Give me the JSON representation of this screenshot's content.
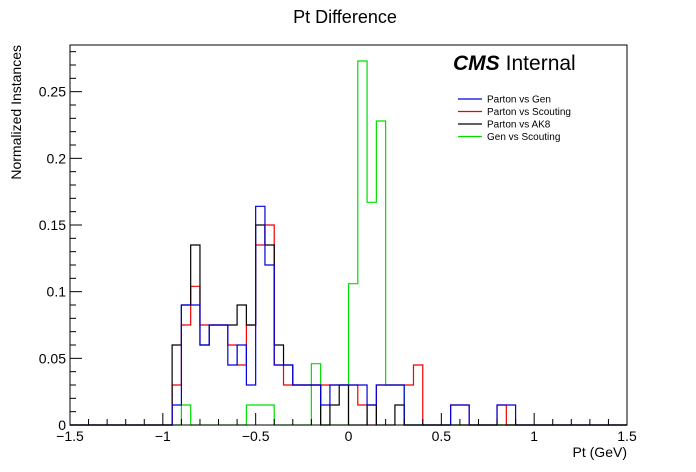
{
  "chart_data": {
    "type": "line",
    "style": "step-histogram",
    "title": "Pt Difference",
    "xlabel": "Pt (GeV)",
    "ylabel": "Normalized Instances",
    "xlim": [
      -1.5,
      1.5
    ],
    "ylim": [
      0,
      0.285
    ],
    "x_ticks": [
      -1.5,
      -1,
      -0.5,
      0,
      0.5,
      1,
      1.5
    ],
    "x_tick_labels": [
      "−1.5",
      "−1",
      "−0.5",
      "0",
      "0.5",
      "1",
      "1.5"
    ],
    "y_ticks": [
      0,
      0.05,
      0.1,
      0.15,
      0.2,
      0.25
    ],
    "y_tick_labels": [
      "0",
      "0.05",
      "0.1",
      "0.15",
      "0.2",
      "0.25"
    ],
    "annotation": {
      "bold": "CMS",
      "normal": "Internal"
    },
    "legend_position": "top-right",
    "bin_edges": [
      -1.5,
      -1.45,
      -1.4,
      -1.35,
      -1.3,
      -1.25,
      -1.2,
      -1.15,
      -1.1,
      -1.05,
      -1.0,
      -0.95,
      -0.9,
      -0.85,
      -0.8,
      -0.75,
      -0.7,
      -0.65,
      -0.6,
      -0.55,
      -0.5,
      -0.45,
      -0.4,
      -0.35,
      -0.3,
      -0.25,
      -0.2,
      -0.15,
      -0.1,
      -0.05,
      0.0,
      0.05,
      0.1,
      0.15,
      0.2,
      0.25,
      0.3,
      0.35,
      0.4,
      0.45,
      0.5,
      0.55,
      0.6,
      0.65,
      0.7,
      0.75,
      0.8,
      0.85,
      0.9,
      0.95,
      1.0,
      1.05,
      1.1,
      1.15,
      1.2,
      1.25,
      1.3,
      1.35,
      1.4,
      1.45,
      1.5
    ],
    "series": [
      {
        "name": "Gen vs Scouting",
        "color": "#00dd00",
        "values": [
          0,
          0,
          0,
          0,
          0,
          0,
          0,
          0,
          0,
          0,
          0,
          0,
          0.015,
          0,
          0,
          0,
          0,
          0,
          0,
          0.015,
          0.015,
          0.015,
          0,
          0,
          0,
          0,
          0.046,
          0,
          0,
          0,
          0.106,
          0.273,
          0.167,
          0.228,
          0.03,
          0.03,
          0,
          0,
          0,
          0,
          0,
          0,
          0,
          0,
          0,
          0,
          0,
          0,
          0,
          0,
          0,
          0,
          0,
          0,
          0,
          0,
          0,
          0,
          0,
          0
        ]
      },
      {
        "name": "Parton vs Scouting",
        "color": "#ee0000",
        "values": [
          0,
          0,
          0,
          0,
          0,
          0,
          0,
          0,
          0,
          0,
          0,
          0.03,
          0.075,
          0.104,
          0.075,
          0.075,
          0.075,
          0.06,
          0.045,
          0.075,
          0.135,
          0.15,
          0.045,
          0.03,
          0.03,
          0.03,
          0.03,
          0.03,
          0.03,
          0.03,
          0.03,
          0.015,
          0,
          0.03,
          0.03,
          0.03,
          0.03,
          0.045,
          0,
          0,
          0,
          0.015,
          0.015,
          0,
          0,
          0,
          0.015,
          0,
          0,
          0,
          0,
          0,
          0,
          0,
          0,
          0,
          0,
          0,
          0,
          0
        ]
      },
      {
        "name": "Parton vs AK8",
        "color": "#000000",
        "values": [
          0,
          0,
          0,
          0,
          0,
          0,
          0,
          0,
          0,
          0,
          0,
          0.06,
          0.09,
          0.135,
          0.06,
          0.075,
          0.075,
          0.075,
          0.09,
          0.075,
          0.15,
          0.135,
          0.06,
          0.045,
          0.03,
          0.03,
          0.03,
          0,
          0.015,
          0.03,
          0,
          0,
          0.015,
          0,
          0,
          0.015,
          0,
          0,
          0,
          0,
          0,
          0,
          0,
          0,
          0,
          0,
          0,
          0,
          0,
          0,
          0,
          0,
          0,
          0,
          0,
          0,
          0,
          0,
          0,
          0
        ]
      },
      {
        "name": "Parton vs Gen",
        "color": "#0000dd",
        "values": [
          0,
          0,
          0,
          0,
          0,
          0,
          0,
          0,
          0,
          0,
          0,
          0.015,
          0.09,
          0.09,
          0.06,
          0.075,
          0.075,
          0.045,
          0.06,
          0.03,
          0.164,
          0.12,
          0.045,
          0.045,
          0.03,
          0.03,
          0.03,
          0.015,
          0.03,
          0.03,
          0.03,
          0.03,
          0.015,
          0.03,
          0.03,
          0.03,
          0,
          0,
          0,
          0,
          0,
          0.015,
          0.015,
          0,
          0,
          0,
          0.015,
          0.015,
          0,
          0,
          0,
          0,
          0,
          0,
          0,
          0,
          0,
          0,
          0,
          0
        ]
      }
    ]
  },
  "legend": [
    {
      "label": "Parton vs Gen",
      "color": "#0000dd"
    },
    {
      "label": "Parton vs Scouting",
      "color": "#ee0000"
    },
    {
      "label": "Parton vs AK8",
      "color": "#000000"
    },
    {
      "label": "Gen vs Scouting",
      "color": "#00dd00"
    }
  ]
}
